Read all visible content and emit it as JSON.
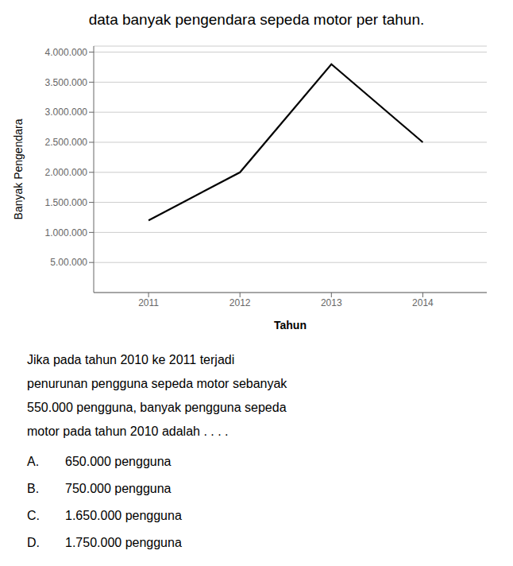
{
  "chart_data": {
    "type": "line",
    "title": "data banyak pengendara sepeda motor per tahun.",
    "x_label": "Tahun",
    "y_label": "Banyak Pengendara",
    "x": [
      2011,
      2012,
      2013,
      2014
    ],
    "values": [
      1200000,
      2000000,
      3800000,
      2500000
    ],
    "color": "#000000",
    "marker": "none",
    "xlim": [
      2010.4,
      2014.7
    ],
    "xticks": [
      2011,
      2012,
      2013,
      2014
    ],
    "ylim": [
      0,
      4100000
    ],
    "yticks": [
      {
        "value": 500000,
        "label": "5.00.000"
      },
      {
        "value": 1000000,
        "label": "1.000.000"
      },
      {
        "value": 1500000,
        "label": "1.500.000"
      },
      {
        "value": 2000000,
        "label": "2.000.000"
      },
      {
        "value": 2500000,
        "label": "2.500.000"
      },
      {
        "value": 3000000,
        "label": "3.000.000"
      },
      {
        "value": 3500000,
        "label": "3.500.000"
      },
      {
        "value": 4000000,
        "label": "4.000.000"
      }
    ],
    "grid": true,
    "annotations": {
      "question": [
        "Jika pada tahun 2010 ke 2011 terjadi",
        "penurunan pengguna sepeda motor sebanyak",
        "550.000 pengguna, banyak pengguna sepeda",
        "motor pada tahun 2010 adalah . . . ."
      ],
      "choices": [
        {
          "label": "A.",
          "text": "650.000 pengguna"
        },
        {
          "label": "B.",
          "text": "750.000 pengguna"
        },
        {
          "label": "C.",
          "text": "1.650.000 pengguna"
        },
        {
          "label": "D.",
          "text": "1.750.000 pengguna"
        }
      ]
    }
  }
}
